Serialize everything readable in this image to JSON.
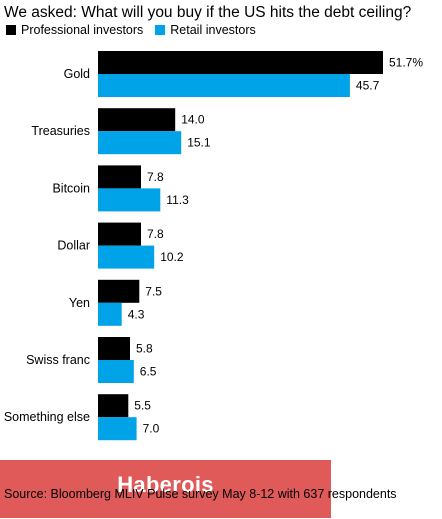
{
  "title": "We asked: What will you buy if the US hits the debt ceiling?",
  "legend": [
    {
      "label": "Professional investors",
      "color": "#000000"
    },
    {
      "label": "Retail investors",
      "color": "#00a2e8"
    }
  ],
  "watermark": "Haberois",
  "source": "Source: Bloomberg MLIV Pulse survey May 8-12 with 637 respondents",
  "chart_data": {
    "type": "bar",
    "orientation": "horizontal",
    "categories": [
      "Gold",
      "Treasuries",
      "Bitcoin",
      "Dollar",
      "Yen",
      "Swiss franc",
      "Something else"
    ],
    "series": [
      {
        "name": "Professional investors",
        "color": "#000000",
        "values": [
          51.7,
          14.0,
          7.8,
          7.8,
          7.5,
          5.8,
          5.5
        ],
        "labels": [
          "51.7%",
          "14.0",
          "7.8",
          "7.8",
          "7.5",
          "5.8",
          "5.5"
        ]
      },
      {
        "name": "Retail investors",
        "color": "#00a2e8",
        "values": [
          45.7,
          15.1,
          11.3,
          10.2,
          4.3,
          6.5,
          7.0
        ],
        "labels": [
          "45.7",
          "15.1",
          "11.3",
          "10.2",
          "4.3",
          "6.5",
          "7.0"
        ]
      }
    ],
    "xlim": [
      0,
      51.7
    ],
    "grid": false,
    "legend_position": "top-left"
  }
}
